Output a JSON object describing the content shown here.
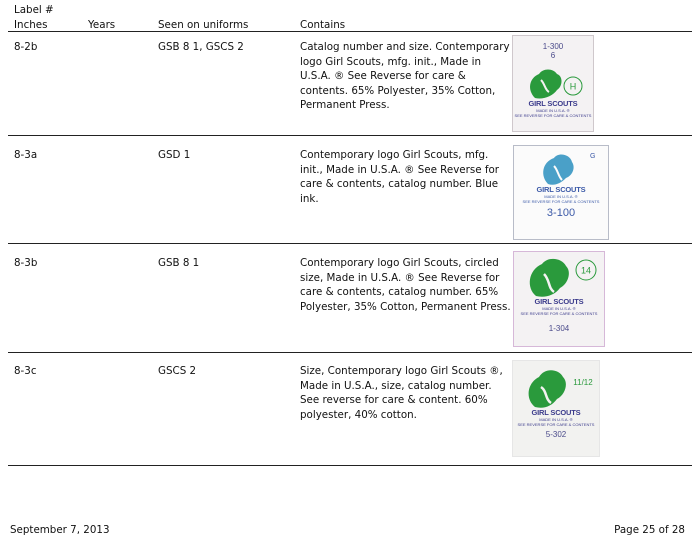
{
  "header": {
    "label_line1": "Label #",
    "label_line2": "Inches",
    "years": "Years",
    "seen": "Seen on uniforms",
    "contains": "Contains"
  },
  "rows": [
    {
      "label": "8-2b",
      "years": "",
      "seen": "GSB 8 1, GSCS 2",
      "contains": "Catalog number and size. Contemporary logo Girl Scouts, mfg. init., Made in U.S.A. ® See Reverse for care & contents. 65% Polyester, 35% Cotton, Permanent Press.",
      "image": {
        "catalog": "1-300",
        "size": "6",
        "mfg": "H",
        "brand": "GIRL SCOUTS",
        "made": "MADE IN U.S.A. ®",
        "reverse": "SEE REVERSE FOR CARE & CONTENTS",
        "ink": "#2a9a3c",
        "text_ink": "#3c3c8c"
      }
    },
    {
      "label": "8-3a",
      "years": "",
      "seen": "GSD 1",
      "contains": "Contemporary logo Girl Scouts, mfg. init., Made in U.S.A. ® See Reverse for care & contents, catalog number. Blue ink.",
      "image": {
        "catalog": "3-100",
        "mfg": "G",
        "brand": "GIRL SCOUTS",
        "made": "MADE IN U.S.A. ®",
        "reverse": "SEE REVERSE FOR CARE & CONTENTS",
        "ink": "#4aa0c8",
        "text_ink": "#3c5aa8"
      }
    },
    {
      "label": "8-3b",
      "years": "",
      "seen": "GSB 8 1",
      "contains": "Contemporary logo Girl Scouts, circled size, Made in U.S.A. ® See Reverse for care & contents, catalog number. 65% Polyester, 35% Cotton, Permanent Press.",
      "image": {
        "catalog": "1-304",
        "size": "14",
        "brand": "GIRL SCOUTS",
        "made": "MADE IN U.S.A. ®",
        "reverse": "SEE REVERSE FOR CARE & CONTENTS",
        "ink": "#2a9a3c",
        "text_ink": "#3c3c8c"
      }
    },
    {
      "label": "8-3c",
      "years": "",
      "seen": "GSCS 2",
      "contains": "Size, Contemporary logo Girl Scouts ®, Made in U.S.A., size, catalog number. See reverse for care & content. 60% polyester, 40% cotton.",
      "image": {
        "catalog": "5-302",
        "size": "11/12",
        "brand": "GIRL SCOUTS",
        "made": "MADE IN U.S.A. ®",
        "reverse": "SEE REVERSE FOR CARE & CONTENTS",
        "ink": "#2a9a3c",
        "text_ink": "#3c3c8c"
      }
    }
  ],
  "footer": {
    "date": "September 7, 2013",
    "page": "Page 25 of 28"
  }
}
